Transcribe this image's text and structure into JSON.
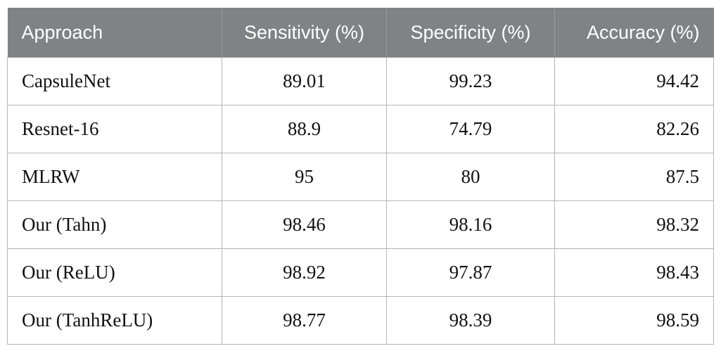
{
  "table": {
    "headers": [
      "Approach",
      "Sensitivity (%)",
      "Specificity (%)",
      "Accuracy (%)"
    ],
    "rows": [
      [
        "CapsuleNet",
        "89.01",
        "99.23",
        "94.42"
      ],
      [
        "Resnet-16",
        "88.9",
        "74.79",
        "82.26"
      ],
      [
        "MLRW",
        "95",
        "80",
        "87.5"
      ],
      [
        "Our (Tahn)",
        "98.46",
        "98.16",
        "98.32"
      ],
      [
        "Our (ReLU)",
        "98.92",
        "97.87",
        "98.43"
      ],
      [
        "Our (TanhReLU)",
        "98.77",
        "98.39",
        "98.59"
      ]
    ]
  },
  "colors": {
    "header_background": "#808285",
    "header_text": "#ffffff",
    "border": "#b5b5b5"
  }
}
